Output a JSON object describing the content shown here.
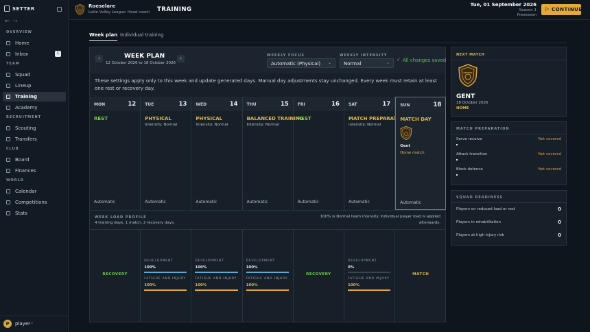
{
  "sidebar": {
    "brand": "SETTER",
    "sections": [
      {
        "title": "OVERVIEW",
        "items": [
          "Home",
          "Inbox"
        ]
      },
      {
        "title": "TEAM",
        "items": [
          "Squad",
          "Lineup",
          "Training",
          "Academy"
        ]
      },
      {
        "title": "RECRUITMENT",
        "items": [
          "Scouting",
          "Transfers"
        ]
      },
      {
        "title": "CLUB",
        "items": [
          "Board",
          "Finances"
        ]
      },
      {
        "title": "WORLD",
        "items": [
          "Calendar",
          "Competitions",
          "Stats"
        ]
      }
    ],
    "inbox_badge": "1",
    "user_initial": "P",
    "user": "player"
  },
  "header": {
    "club": "Roeselare",
    "league": "Lotto Volley League",
    "role": "Head coach",
    "page_title": "TRAINING",
    "date": "Tue, 01 September 2026",
    "season": "Season 1",
    "phase": "Preseason",
    "continue": "CONTINUE"
  },
  "tabs": [
    "Week plan",
    "Individual training"
  ],
  "week_plan": {
    "title": "WEEK PLAN",
    "range": "12 October 2026 to 18 October 2026",
    "focus_label": "WEEKLY FOCUS",
    "focus": "Automatic (Physical)",
    "intensity_label": "WEEKLY INTENSITY",
    "intensity": "Normal",
    "saved": "All changes saved",
    "note": "These settings apply only to this week and update generated days. Manual day adjustments stay unchanged. Every week must retain at least one rest or recovery day."
  },
  "days": [
    {
      "day": "MON",
      "date": "12",
      "session": "REST",
      "mode": "Automatic"
    },
    {
      "day": "TUE",
      "date": "13",
      "session": "PHYSICAL",
      "detail": "Intensity: Normal",
      "mode": "Automatic"
    },
    {
      "day": "WED",
      "date": "14",
      "session": "PHYSICAL",
      "detail": "Intensity: Normal",
      "mode": "Automatic"
    },
    {
      "day": "THU",
      "date": "15",
      "session": "BALANCED TRAINING",
      "detail": "Intensity: Normal",
      "mode": "Automatic"
    },
    {
      "day": "FRI",
      "date": "16",
      "session": "REST",
      "mode": "Automatic"
    },
    {
      "day": "SAT",
      "date": "17",
      "session": "MATCH PREPARATION",
      "detail": "Intensity: Normal",
      "mode": "Automatic"
    },
    {
      "day": "SUN",
      "date": "18",
      "session": "MATCH DAY",
      "opponent": "Gent",
      "detail": "Home match",
      "mode": "Automatic"
    }
  ],
  "load_profile": {
    "title": "WEEK LOAD PROFILE",
    "summary": "4 training days, 1 match, 2 recovery days.",
    "note": "100% is Normal team intensity. Individual player load is applied afterwards.",
    "days": [
      {
        "label": "RECOVERY"
      },
      {
        "dev_label": "DEVELOPMENT",
        "dev": "100%",
        "fat_label": "FATIGUE AND INJURY",
        "fat": "100%"
      },
      {
        "dev_label": "DEVELOPMENT",
        "dev": "100%",
        "fat_label": "FATIGUE AND INJURY",
        "fat": "100%"
      },
      {
        "dev_label": "DEVELOPMENT",
        "dev": "100%",
        "fat_label": "FATIGUE AND INJURY",
        "fat": "100%"
      },
      {
        "label": "RECOVERY"
      },
      {
        "dev_label": "DEVELOPMENT",
        "dev": "0%",
        "fat_label": "FATIGUE AND INJURY",
        "fat": "100%"
      },
      {
        "label": "MATCH"
      }
    ]
  },
  "next_match": {
    "title": "NEXT MATCH",
    "crest": "SEPPOT",
    "opponent": "GENT",
    "date": "18 October 2026",
    "venue": "HOME"
  },
  "match_preparation": {
    "title": "MATCH PREPARATION",
    "rows": [
      {
        "label": "Serve receive",
        "status": "Not covered"
      },
      {
        "label": "Attack transition",
        "status": "Not covered"
      },
      {
        "label": "Block defence",
        "status": "Not covered"
      }
    ]
  },
  "squad_readiness": {
    "title": "SQUAD READINESS",
    "rows": [
      {
        "label": "Players on reduced load or rest",
        "value": "0"
      },
      {
        "label": "Players in rehabilitation",
        "value": "0"
      },
      {
        "label": "Players at high injury risk",
        "value": "0"
      }
    ]
  }
}
